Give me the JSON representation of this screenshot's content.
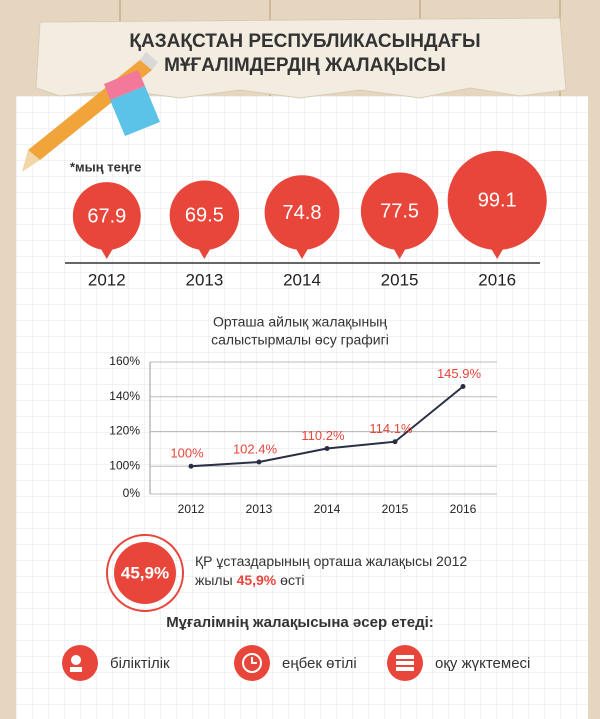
{
  "header": {
    "title": [
      "ҚАЗАҚСТАН РЕСПУБЛИКАСЫНДАҒЫ",
      "МҰҒАЛІМДЕРДІҢ ЖАЛАҚЫСЫ"
    ]
  },
  "chart_data": [
    {
      "type": "bubble",
      "note": "*мың теңге",
      "categories": [
        "2012",
        "2013",
        "2014",
        "2015",
        "2016"
      ],
      "values": [
        67.9,
        69.5,
        74.8,
        77.5,
        99.1
      ],
      "color": "#e8463a"
    },
    {
      "type": "line",
      "title": [
        "Орташа айлық жалақының",
        "салыстырмалы өсу графигі"
      ],
      "categories": [
        "2012",
        "2013",
        "2014",
        "2015",
        "2016"
      ],
      "values": [
        100,
        102.4,
        110.2,
        114.1,
        145.9
      ],
      "value_labels": [
        "100%",
        "102.4%",
        "110.2%",
        "114.1%",
        "145.9%"
      ],
      "color": "#2b2f45",
      "label_color": "#e8463a",
      "ylim": [
        84,
        160
      ],
      "axis_break": true,
      "yticks": [
        {
          "value": 0,
          "label": "0%"
        },
        {
          "value": 100,
          "label": "100%"
        },
        {
          "value": 120,
          "label": "120%"
        },
        {
          "value": 140,
          "label": "140%"
        },
        {
          "value": 160,
          "label": "160%"
        }
      ],
      "grid": true
    }
  ],
  "callout": {
    "value": "45,9%",
    "text": [
      "ҚР ұстаздарының орташа жалақысы 2012",
      "жылы",
      "45,9%",
      "өсті"
    ]
  },
  "factors": {
    "title": "Мұғалімнің жалақысына әсер етеді:",
    "items": [
      "біліктілік",
      "еңбек өтілі",
      "оқу жүктемесі"
    ]
  }
}
